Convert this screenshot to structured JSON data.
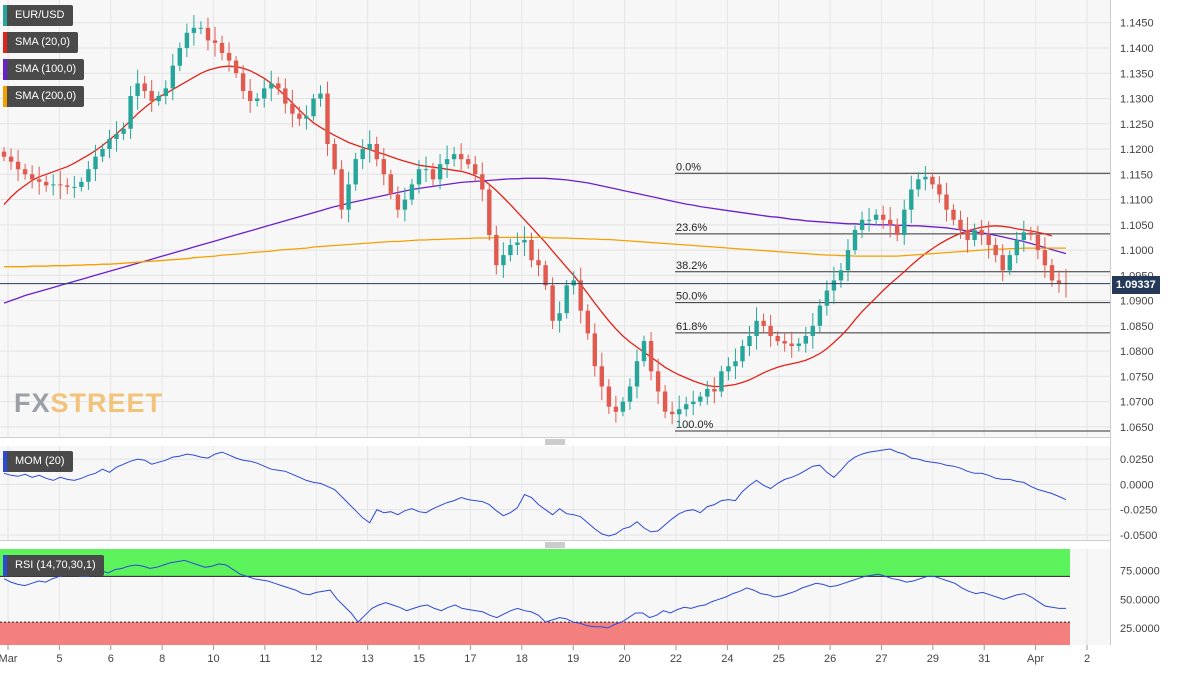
{
  "symbol": "EUR/USD",
  "watermark": {
    "left": "FX",
    "right": "STREET"
  },
  "indicators": [
    {
      "label": "SMA (20,0)",
      "color": "#e2231a"
    },
    {
      "label": "SMA (100,0)",
      "color": "#6a1fd1"
    },
    {
      "label": "SMA (200,0)",
      "color": "#f5a000"
    }
  ],
  "current_price": "1.09337",
  "colors": {
    "up": "#26a69a",
    "down": "#e05a4f",
    "mom_line": "#2b4ad6",
    "rsi_overbought": "#5cf25c",
    "rsi_oversold": "#f47f7f"
  },
  "momentum_label": "MOM (20)",
  "rsi_label": "RSI (14,70,30,1)",
  "chart_data": [
    {
      "type": "candlestick",
      "title": "EUR/USD",
      "ylim": [
        1.063,
        1.1495
      ],
      "y_ticks": [
        "1.1450",
        "1.1400",
        "1.1350",
        "1.1300",
        "1.1250",
        "1.1200",
        "1.1150",
        "1.1100",
        "1.1050",
        "1.1000",
        "1.0950",
        "1.0900",
        "1.0850",
        "1.0800",
        "1.0750",
        "1.0700",
        "1.0650"
      ],
      "x_ticks": [
        "Mar",
        "5",
        "6",
        "8",
        "10",
        "11",
        "12",
        "13",
        "15",
        "17",
        "18",
        "19",
        "20",
        "22",
        "24",
        "25",
        "26",
        "27",
        "29",
        "31",
        "Apr",
        "2"
      ],
      "close": [
        1.1185,
        1.1175,
        1.116,
        1.115,
        1.114,
        1.1135,
        1.1128,
        1.113,
        1.1128,
        1.1125,
        1.1125,
        1.1135,
        1.116,
        1.1185,
        1.12,
        1.122,
        1.123,
        1.124,
        1.1305,
        1.133,
        1.1315,
        1.1295,
        1.1305,
        1.132,
        1.1365,
        1.14,
        1.143,
        1.144,
        1.144,
        1.1415,
        1.141,
        1.139,
        1.1375,
        1.135,
        1.1315,
        1.1295,
        1.13,
        1.132,
        1.133,
        1.132,
        1.129,
        1.127,
        1.126,
        1.1265,
        1.13,
        1.131,
        1.121,
        1.116,
        1.108,
        1.113,
        1.118,
        1.12,
        1.121,
        1.118,
        1.115,
        1.111,
        1.108,
        1.11,
        1.113,
        1.116,
        1.116,
        1.114,
        1.117,
        1.118,
        1.119,
        1.118,
        1.117,
        1.115,
        1.112,
        1.103,
        1.097,
        1.099,
        1.101,
        1.1015,
        1.102,
        1.098,
        1.097,
        1.093,
        1.086,
        1.0875,
        1.093,
        1.094,
        1.088,
        1.0835,
        1.077,
        1.073,
        1.069,
        1.068,
        1.07,
        1.073,
        1.078,
        1.082,
        1.076,
        1.072,
        1.068,
        1.0675,
        1.0685,
        1.0695,
        1.07,
        1.071,
        1.0725,
        1.072,
        1.076,
        1.077,
        1.078,
        1.081,
        1.083,
        1.086,
        1.085,
        1.083,
        1.082,
        1.0815,
        1.081,
        1.0815,
        1.083,
        1.085,
        1.089,
        1.092,
        1.094,
        1.096,
        1.1,
        1.104,
        1.106,
        1.106,
        1.107,
        1.106,
        1.105,
        1.103,
        1.108,
        1.112,
        1.114,
        1.1145,
        1.113,
        1.111,
        1.108,
        1.106,
        1.104,
        1.102,
        1.104,
        1.103,
        1.101,
        1.099,
        1.096,
        1.099,
        1.102,
        1.1035,
        1.103,
        1.1,
        1.097,
        1.094,
        1.0935,
        1.0933
      ],
      "series": [
        {
          "name": "SMA (20,0)",
          "from_bar": 0,
          "values": [
            1.109,
            1.1105,
            1.1118,
            1.1128,
            1.1138,
            1.1145,
            1.115,
            1.1155,
            1.116,
            1.1165,
            1.1172,
            1.118,
            1.1188,
            1.1197,
            1.1207,
            1.1218,
            1.123,
            1.1243,
            1.1256,
            1.127,
            1.1282,
            1.1293,
            1.1303,
            1.131,
            1.1318,
            1.1326,
            1.1334,
            1.1342,
            1.135,
            1.1356,
            1.136,
            1.1363,
            1.1364,
            1.1363,
            1.136,
            1.1355,
            1.1348,
            1.134,
            1.133,
            1.1318,
            1.1305,
            1.1291,
            1.1277,
            1.1264,
            1.1252,
            1.1243,
            1.1235,
            1.1227,
            1.122,
            1.1213,
            1.1208,
            1.1203,
            1.1199,
            1.1194,
            1.119,
            1.1185,
            1.118,
            1.1176,
            1.1172,
            1.1168,
            1.1166,
            1.1164,
            1.1162,
            1.116,
            1.1158,
            1.1156,
            1.1152,
            1.1147,
            1.114,
            1.113,
            1.1118,
            1.1104,
            1.109,
            1.1075,
            1.106,
            1.1045,
            1.103,
            1.1015,
            1.0998,
            1.0982,
            1.0966,
            1.095,
            1.0932,
            1.0914,
            1.0895,
            1.0877,
            1.086,
            1.0844,
            1.083,
            1.0818,
            1.0808,
            1.0798,
            1.0788,
            1.0778,
            1.0768,
            1.076,
            1.0753,
            1.0747,
            1.0741,
            1.0736,
            1.0732,
            1.073,
            1.073,
            1.0732,
            1.0734,
            1.0738,
            1.0743,
            1.075,
            1.0757,
            1.0763,
            1.0768,
            1.0772,
            1.0775,
            1.0778,
            1.0782,
            1.0788,
            1.0795,
            1.0805,
            1.0817,
            1.083,
            1.0845,
            1.0862,
            1.0878,
            1.0892,
            1.0906,
            1.092,
            1.0933,
            1.0945,
            1.0957,
            1.097,
            1.0982,
            1.0993,
            1.1003,
            1.1012,
            1.102,
            1.1027,
            1.1033,
            1.1038,
            1.1042,
            1.1045,
            1.1047,
            1.1048,
            1.1047,
            1.1045,
            1.1042,
            1.104,
            1.1038,
            1.1035,
            1.1032,
            1.1028
          ]
        },
        {
          "name": "SMA (100,0)",
          "from_bar": 0,
          "values": [
            1.0895,
            1.09,
            1.0905,
            1.091,
            1.0914,
            1.0918,
            1.0922,
            1.0926,
            1.093,
            1.0934,
            1.0938,
            1.0942,
            1.0946,
            1.095,
            1.0954,
            1.0958,
            1.0962,
            1.0966,
            1.097,
            1.0974,
            1.0978,
            1.0982,
            1.0986,
            1.099,
            1.0994,
            1.0998,
            1.1002,
            1.1006,
            1.101,
            1.1014,
            1.1018,
            1.1022,
            1.1026,
            1.103,
            1.1034,
            1.1038,
            1.1042,
            1.1046,
            1.105,
            1.1054,
            1.1058,
            1.1062,
            1.1066,
            1.107,
            1.1074,
            1.1078,
            1.1082,
            1.1086,
            1.1089,
            1.1093,
            1.1096,
            1.1099,
            1.1102,
            1.1105,
            1.1108,
            1.1111,
            1.1114,
            1.1117,
            1.112,
            1.1122,
            1.1124,
            1.1126,
            1.1128,
            1.113,
            1.1132,
            1.1134,
            1.1135,
            1.1136,
            1.1137,
            1.1138,
            1.1139,
            1.114,
            1.1141,
            1.1141,
            1.1142,
            1.1142,
            1.1142,
            1.1142,
            1.1141,
            1.114,
            1.1139,
            1.1137,
            1.1135,
            1.1133,
            1.113,
            1.1127,
            1.1124,
            1.1121,
            1.1118,
            1.1115,
            1.1112,
            1.1109,
            1.1106,
            1.1103,
            1.11,
            1.1097,
            1.1094,
            1.1091,
            1.1089,
            1.1086,
            1.1084,
            1.1082,
            1.108,
            1.1078,
            1.1076,
            1.1074,
            1.1072,
            1.107,
            1.1068,
            1.1066,
            1.1065,
            1.1063,
            1.1061,
            1.106,
            1.1058,
            1.1057,
            1.1056,
            1.1055,
            1.1054,
            1.1053,
            1.1052,
            1.1052,
            1.1051,
            1.1051,
            1.105,
            1.105,
            1.105,
            1.1049,
            1.1049,
            1.1048,
            1.1048,
            1.1047,
            1.1046,
            1.1045,
            1.1044,
            1.1042,
            1.104,
            1.1038,
            1.1036,
            1.1034,
            1.1032,
            1.1029,
            1.1026,
            1.1023,
            1.102,
            1.1017,
            1.1013,
            1.1009,
            1.1005,
            1.1001,
            1.0997,
            1.0993
          ]
        },
        {
          "name": "SMA (200,0)",
          "from_bar": 0,
          "values": [
            1.0967,
            1.0967,
            1.0967,
            1.0967,
            1.0968,
            1.0968,
            1.0968,
            1.0969,
            1.0969,
            1.0969,
            1.097,
            1.097,
            1.0971,
            1.0971,
            1.0972,
            1.0972,
            1.0973,
            1.0974,
            1.0975,
            1.0976,
            1.0977,
            1.0978,
            1.0979,
            1.098,
            1.0981,
            1.0982,
            1.0983,
            1.0985,
            1.0986,
            1.0987,
            1.0988,
            1.099,
            1.0991,
            1.0992,
            1.0993,
            1.0995,
            1.0996,
            1.0997,
            1.0998,
            1.1,
            1.1001,
            1.1002,
            1.1003,
            1.1004,
            1.1006,
            1.1007,
            1.1008,
            1.1009,
            1.101,
            1.1011,
            1.1012,
            1.1013,
            1.1014,
            1.1015,
            1.1016,
            1.1017,
            1.1017,
            1.1018,
            1.1019,
            1.102,
            1.102,
            1.1021,
            1.1021,
            1.1022,
            1.1022,
            1.1023,
            1.1023,
            1.1024,
            1.1024,
            1.1024,
            1.1025,
            1.1025,
            1.1025,
            1.1025,
            1.1025,
            1.1025,
            1.1025,
            1.1025,
            1.1024,
            1.1024,
            1.1024,
            1.1023,
            1.1023,
            1.1022,
            1.1022,
            1.1021,
            1.1021,
            1.102,
            1.1019,
            1.1018,
            1.1017,
            1.1016,
            1.1015,
            1.1014,
            1.1013,
            1.1012,
            1.1011,
            1.101,
            1.1009,
            1.1008,
            1.1007,
            1.1006,
            1.1005,
            1.1004,
            1.1003,
            1.1002,
            1.1001,
            1.1,
            1.0999,
            1.0998,
            1.0997,
            1.0996,
            1.0995,
            1.0994,
            1.0993,
            1.0992,
            1.0991,
            1.099,
            1.099,
            1.0989,
            1.0989,
            1.0988,
            1.0988,
            1.0988,
            1.0988,
            1.0988,
            1.0988,
            1.0988,
            1.0989,
            1.099,
            1.0991,
            1.0992,
            1.0993,
            1.0994,
            1.0995,
            1.0996,
            1.0997,
            1.0998,
            1.0999,
            1.1,
            1.1001,
            1.1002,
            1.1002,
            1.1003,
            1.1003,
            1.1004,
            1.1004,
            1.1004,
            1.1004,
            1.1004,
            1.1004,
            1.1004
          ]
        }
      ],
      "fibonacci": [
        {
          "label": "0.0%",
          "value": 1.1152
        },
        {
          "label": "23.6%",
          "value": 1.1032
        },
        {
          "label": "38.2%",
          "value": 1.0957
        },
        {
          "label": "50.0%",
          "value": 1.0896
        },
        {
          "label": "61.8%",
          "value": 1.0836
        },
        {
          "label": "100.0%",
          "value": 1.0642
        }
      ],
      "current_price_value": 1.09337
    },
    {
      "type": "line",
      "title": "MOM (20)",
      "ylim": [
        -0.055,
        0.038
      ],
      "y_ticks": [
        "0.0250",
        "0.0000",
        "-0.0250",
        "-0.0500"
      ],
      "series": [
        {
          "name": "MOM (20)",
          "values": [
            0.011,
            0.009,
            0.008,
            0.01,
            0.007,
            0.009,
            0.006,
            0.004,
            0.007,
            0.005,
            0.004,
            0.006,
            0.009,
            0.011,
            0.015,
            0.012,
            0.017,
            0.02,
            0.023,
            0.025,
            0.024,
            0.02,
            0.022,
            0.024,
            0.027,
            0.028,
            0.03,
            0.029,
            0.027,
            0.026,
            0.03,
            0.032,
            0.029,
            0.026,
            0.024,
            0.023,
            0.021,
            0.018,
            0.015,
            0.014,
            0.013,
            0.01,
            0.007,
            0.004,
            0.002,
            0.001,
            -0.002,
            -0.005,
            -0.012,
            -0.019,
            -0.026,
            -0.033,
            -0.038,
            -0.025,
            -0.028,
            -0.027,
            -0.03,
            -0.026,
            -0.024,
            -0.027,
            -0.028,
            -0.024,
            -0.021,
            -0.018,
            -0.016,
            -0.013,
            -0.015,
            -0.016,
            -0.017,
            -0.02,
            -0.026,
            -0.031,
            -0.028,
            -0.023,
            -0.01,
            -0.013,
            -0.02,
            -0.025,
            -0.03,
            -0.024,
            -0.029,
            -0.03,
            -0.032,
            -0.038,
            -0.044,
            -0.049,
            -0.051,
            -0.049,
            -0.044,
            -0.042,
            -0.037,
            -0.043,
            -0.047,
            -0.046,
            -0.04,
            -0.034,
            -0.029,
            -0.026,
            -0.025,
            -0.028,
            -0.022,
            -0.02,
            -0.016,
            -0.015,
            -0.016,
            -0.007,
            -0.001,
            0.004,
            -0.001,
            -0.004,
            0.001,
            0.005,
            0.007,
            0.01,
            0.014,
            0.018,
            0.019,
            0.012,
            0.007,
            0.014,
            0.022,
            0.027,
            0.03,
            0.032,
            0.033,
            0.034,
            0.035,
            0.032,
            0.03,
            0.026,
            0.025,
            0.023,
            0.022,
            0.021,
            0.019,
            0.018,
            0.016,
            0.013,
            0.011,
            0.011,
            0.009,
            0.006,
            0.005,
            0.005,
            0.003,
            0.002,
            -0.002,
            -0.005,
            -0.007,
            -0.009,
            -0.012,
            -0.015
          ]
        }
      ]
    },
    {
      "type": "line",
      "title": "RSI (14,70,30,1)",
      "ylim": [
        10,
        94
      ],
      "y_ticks": [
        "75.0000",
        "50.0000",
        "25.0000"
      ],
      "bands": {
        "overbought": 70,
        "oversold": 30
      },
      "series": [
        {
          "name": "RSI (14,70,30,1)",
          "values": [
            68,
            65,
            63,
            62,
            64,
            66,
            65,
            68,
            70,
            72,
            73,
            70,
            70,
            72,
            75,
            73,
            76,
            77,
            79,
            80,
            79,
            77,
            78,
            80,
            82,
            83,
            84,
            82,
            80,
            78,
            79,
            81,
            80,
            76,
            72,
            70,
            68,
            67,
            66,
            64,
            62,
            60,
            58,
            55,
            54,
            56,
            57,
            58,
            50,
            44,
            38,
            30,
            36,
            42,
            45,
            47,
            45,
            43,
            40,
            42,
            44,
            45,
            42,
            40,
            43,
            45,
            42,
            41,
            40,
            39,
            36,
            34,
            37,
            40,
            42,
            40,
            39,
            36,
            30,
            32,
            34,
            33,
            30,
            29,
            27,
            26,
            26,
            25,
            28,
            30,
            34,
            38,
            38,
            34,
            36,
            40,
            38,
            41,
            43,
            42,
            44,
            45,
            48,
            50,
            52,
            55,
            57,
            60,
            58,
            55,
            54,
            52,
            53,
            55,
            57,
            60,
            62,
            64,
            63,
            61,
            62,
            64,
            66,
            68,
            70,
            71,
            72,
            70,
            68,
            67,
            65,
            66,
            68,
            70,
            70,
            68,
            66,
            64,
            60,
            57,
            55,
            56,
            54,
            52,
            50,
            52,
            54,
            55,
            52,
            48,
            44,
            43,
            42,
            42
          ]
        }
      ]
    }
  ]
}
